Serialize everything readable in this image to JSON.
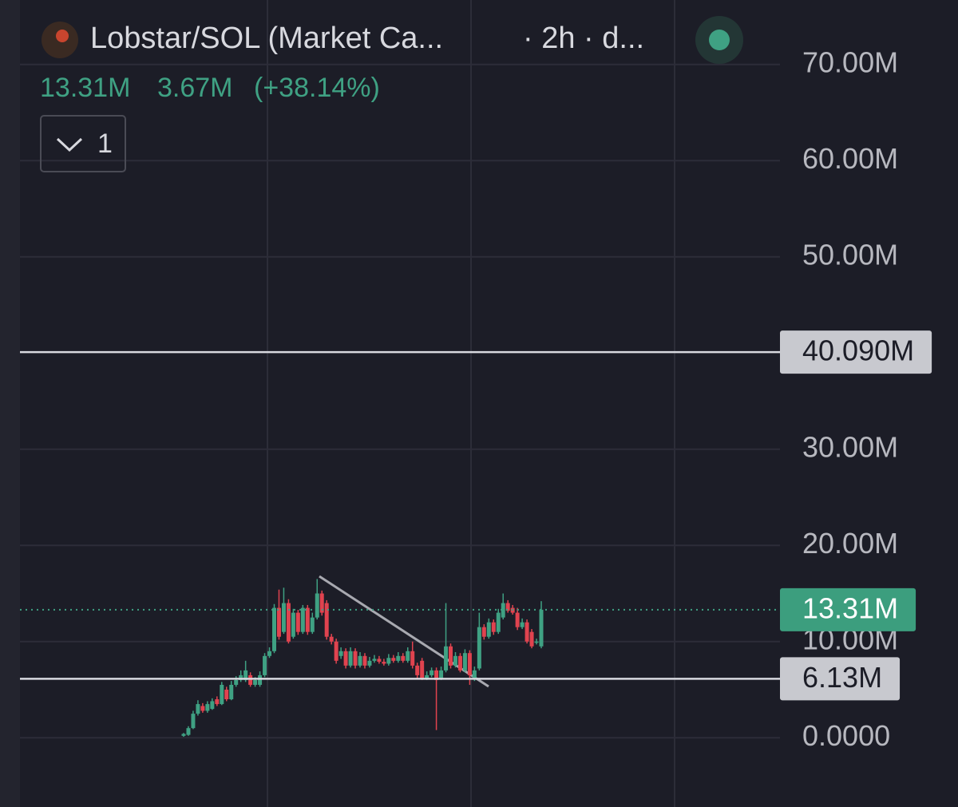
{
  "chart_data": {
    "type": "candlestick",
    "title": "Lobstar/SOL (Market Ca...",
    "subtitle": "· 2h · d...",
    "stats": [
      "13.31M",
      "3.67M",
      "(+38.14%)"
    ],
    "indicator_count": "1",
    "up_color": "#3fa183",
    "down_color": "#e0434f",
    "open": [
      0.2,
      0.3,
      1.0,
      2.5,
      3.3,
      2.8,
      3.0,
      4.0,
      3.5,
      5.0,
      4.0,
      5.5,
      6.0,
      6.0,
      6.5,
      5.5,
      5.5,
      6.5,
      8.5,
      9.0,
      13.5,
      11.0,
      14.0,
      10.5,
      13.0,
      11.0,
      13.5,
      11.0,
      12.5,
      15.0,
      14.0,
      10.5,
      10.0,
      8.5,
      9.0,
      7.5,
      9.0,
      7.5,
      8.5,
      7.5,
      8.0,
      8.2,
      7.9,
      7.7,
      8.3,
      8.0,
      8.5,
      8.0,
      9.0,
      7.5,
      8.0,
      6.2,
      6.5,
      7.0,
      6.2,
      7.0,
      9.5,
      7.5,
      8.5,
      7.0,
      8.8,
      6.2,
      7.2,
      11.5,
      10.5,
      12.0,
      11.0,
      12.5,
      14.0,
      13.5,
      13.0,
      11.5,
      12.0,
      11.0,
      10.0,
      9.5
    ],
    "high": [
      0.5,
      1.2,
      2.8,
      3.9,
      3.6,
      3.8,
      4.1,
      4.3,
      5.8,
      5.3,
      5.9,
      6.4,
      7.0,
      8.0,
      6.8,
      6.3,
      6.9,
      8.8,
      9.4,
      13.9,
      15.4,
      15.6,
      14.4,
      13.4,
      13.3,
      13.8,
      13.8,
      13.0,
      16.5,
      15.3,
      14.3,
      10.8,
      10.3,
      9.4,
      9.3,
      9.4,
      9.3,
      8.9,
      8.8,
      8.4,
      8.6,
      8.5,
      8.2,
      8.7,
      8.6,
      8.9,
      8.8,
      9.4,
      10.0,
      7.8,
      8.3,
      6.9,
      7.3,
      7.3,
      7.4,
      14.0,
      9.8,
      8.9,
      8.8,
      9.2,
      9.1,
      7.4,
      13.0,
      11.8,
      12.4,
      12.3,
      13.4,
      15.0,
      14.3,
      13.8,
      13.5,
      12.4,
      12.3,
      11.3,
      10.3,
      14.2
    ],
    "low": [
      0.1,
      0.2,
      0.9,
      2.3,
      2.6,
      2.6,
      2.9,
      3.3,
      3.4,
      3.8,
      3.9,
      5.3,
      5.8,
      5.8,
      5.3,
      5.3,
      5.3,
      6.3,
      8.3,
      8.8,
      10.2,
      10.8,
      9.8,
      10.3,
      10.7,
      10.8,
      10.7,
      10.8,
      12.3,
      12.7,
      10.2,
      9.7,
      7.7,
      8.2,
      7.2,
      7.3,
      7.2,
      7.3,
      7.2,
      7.3,
      7.8,
      7.7,
      7.5,
      7.5,
      7.8,
      7.8,
      7.8,
      7.8,
      7.2,
      6.2,
      6.0,
      6.0,
      6.3,
      0.8,
      6.0,
      6.8,
      7.2,
      7.3,
      6.8,
      6.8,
      5.5,
      5.9,
      7.0,
      10.2,
      10.3,
      10.7,
      10.8,
      12.3,
      13.0,
      12.8,
      11.2,
      11.3,
      9.8,
      9.3,
      9.7,
      9.3
    ],
    "close": [
      0.4,
      1.0,
      2.5,
      3.5,
      2.8,
      3.5,
      3.8,
      3.5,
      5.5,
      4.0,
      5.5,
      6.0,
      6.5,
      7.0,
      5.5,
      6.0,
      6.5,
      8.5,
      9.0,
      13.5,
      10.5,
      14.0,
      10.0,
      13.0,
      11.0,
      13.5,
      11.0,
      12.5,
      15.0,
      13.0,
      10.5,
      10.0,
      8.0,
      9.0,
      7.5,
      9.0,
      7.5,
      8.5,
      7.5,
      8.0,
      8.2,
      7.9,
      7.7,
      8.3,
      8.0,
      8.5,
      8.0,
      9.0,
      7.5,
      6.5,
      6.2,
      6.5,
      7.0,
      6.0,
      7.0,
      9.5,
      7.5,
      8.5,
      7.0,
      8.8,
      6.5,
      7.0,
      11.5,
      10.5,
      12.0,
      11.0,
      13.0,
      14.0,
      13.2,
      13.0,
      11.5,
      12.0,
      10.0,
      9.5,
      10.0,
      13.31
    ],
    "ylim": [
      -7.2,
      76.7
    ],
    "yticks": [
      {
        "value": 0,
        "label": "0.0000"
      },
      {
        "value": 10,
        "label": "10.00M"
      },
      {
        "value": 20,
        "label": "20.00M"
      },
      {
        "value": 30,
        "label": "30.00M"
      },
      {
        "value": 50,
        "label": "50.00M"
      },
      {
        "value": 60,
        "label": "60.00M"
      },
      {
        "value": 70,
        "label": "70.00M"
      }
    ],
    "grid": true,
    "price_lines": [
      {
        "value": 40.09,
        "label": "40.090M",
        "style": "solid"
      },
      {
        "value": 6.13,
        "label": "6.13M",
        "style": "solid"
      },
      {
        "value": 13.31,
        "label": "13.31M",
        "style": "dotted"
      }
    ]
  }
}
